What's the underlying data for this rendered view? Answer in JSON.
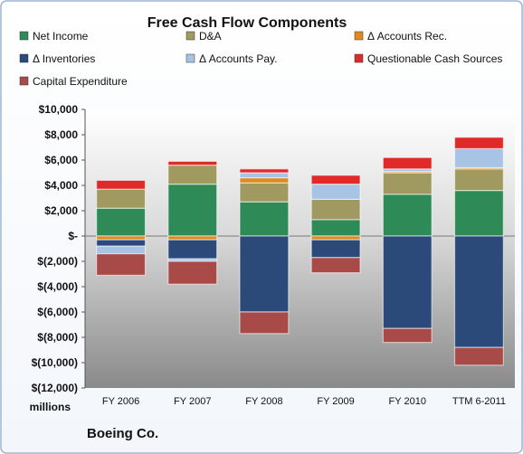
{
  "chart_data": {
    "type": "bar",
    "stacked": true,
    "title": "Free Cash Flow Components",
    "units_label": "millions",
    "company": "Boeing Co.",
    "categories": [
      "FY 2006",
      "FY 2007",
      "FY 2008",
      "FY 2009",
      "FY 2010",
      "TTM 6-2011"
    ],
    "ylim": [
      -12000,
      10000
    ],
    "yticks": [
      10000,
      8000,
      6000,
      4000,
      2000,
      0,
      -2000,
      -4000,
      -6000,
      -8000,
      -10000,
      -12000
    ],
    "ytick_labels": [
      "$10,000",
      "$8,000",
      "$6,000",
      "$4,000",
      "$2,000",
      "$-",
      "$(2,000)",
      "$(4,000)",
      "$(6,000)",
      "$(8,000)",
      "$(10,000)",
      "$(12,000)"
    ],
    "grid": false,
    "legend_position": "top",
    "series": [
      {
        "name": "Net Income",
        "color": "#2e8b57",
        "values": [
          2200,
          4100,
          2700,
          1300,
          3300,
          3600
        ]
      },
      {
        "name": "D&A",
        "color": "#a09a60",
        "values": [
          1500,
          1500,
          1500,
          1600,
          1700,
          1700
        ]
      },
      {
        "name": "Δ Accounts Rec.",
        "color": "#e08a1e",
        "values": [
          -300,
          -300,
          400,
          -300,
          100,
          100
        ]
      },
      {
        "name": "Δ Inventories",
        "color": "#2b4a7a",
        "values": [
          -500,
          -1500,
          -6000,
          -1400,
          -7300,
          -8800
        ]
      },
      {
        "name": "Δ Accounts Pay.",
        "color": "#a8c4e4",
        "values": [
          -600,
          -200,
          400,
          1200,
          200,
          1500
        ]
      },
      {
        "name": "Questionable Cash Sources",
        "color": "#e02a2a",
        "values": [
          700,
          300,
          300,
          700,
          900,
          900
        ]
      },
      {
        "name": "Capital Expenditure",
        "color": "#a84a48",
        "values": [
          -1700,
          -1800,
          -1700,
          -1200,
          -1100,
          -1400
        ]
      }
    ]
  }
}
